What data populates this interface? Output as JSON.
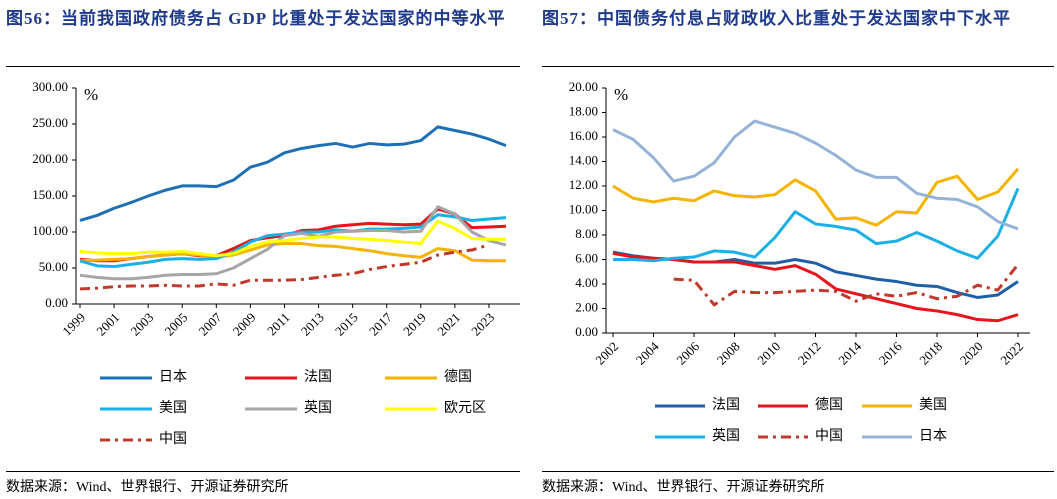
{
  "chart_data": [
    {
      "type": "line",
      "title": "图56：当前我国政府债务占 GDP 比重处于发达国家的中等水平",
      "source": "数据来源：Wind、世界银行、开源证券研究所",
      "y_label": "%",
      "x": [
        1999,
        2000,
        2001,
        2002,
        2003,
        2004,
        2005,
        2006,
        2007,
        2008,
        2009,
        2010,
        2011,
        2012,
        2013,
        2014,
        2015,
        2016,
        2017,
        2018,
        2019,
        2020,
        2021,
        2022,
        2023,
        2024
      ],
      "xlim": [
        1999,
        2024
      ],
      "xticks": [
        1999,
        2001,
        2003,
        2005,
        2007,
        2009,
        2011,
        2013,
        2015,
        2017,
        2019,
        2021,
        2023
      ],
      "ylim": [
        0,
        300
      ],
      "yticks": [
        {
          "value": 0,
          "label": "0.00"
        },
        {
          "value": 50,
          "label": "50.00"
        },
        {
          "value": 100,
          "label": "100.00"
        },
        {
          "value": 150,
          "label": "150.00"
        },
        {
          "value": 200,
          "label": "200.00"
        },
        {
          "value": 250,
          "label": "250.00"
        },
        {
          "value": 300,
          "label": "300.00"
        }
      ],
      "series": [
        {
          "name": "日本",
          "color": "#1f6fb4",
          "values": [
            116,
            123,
            133,
            141,
            150,
            158,
            164,
            164,
            163,
            172,
            190,
            197,
            210,
            216,
            220,
            223,
            218,
            223,
            221,
            222,
            227,
            246,
            241,
            236,
            229,
            220
          ]
        },
        {
          "name": "法国",
          "color": "#e8141c",
          "values": [
            62,
            60,
            60,
            63,
            66,
            68,
            70,
            67,
            67,
            77,
            88,
            92,
            95,
            102,
            103,
            108,
            110,
            112,
            111,
            110,
            111,
            132,
            125,
            106,
            107,
            108
          ]
        },
        {
          "name": "德国",
          "color": "#f5b400",
          "values": [
            60,
            61,
            62,
            63,
            66,
            68,
            70,
            68,
            65,
            68,
            75,
            82,
            84,
            84,
            81,
            80,
            77,
            74,
            70,
            67,
            65,
            77,
            74,
            61,
            60,
            60
          ]
        },
        {
          "name": "美国",
          "color": "#1ab0e6",
          "values": [
            60,
            53,
            52,
            55,
            58,
            62,
            63,
            62,
            63,
            72,
            86,
            95,
            97,
            100,
            100,
            103,
            101,
            104,
            104,
            105,
            107,
            124,
            121,
            116,
            118,
            120
          ]
        },
        {
          "name": "英国",
          "color": "#a6a6a6",
          "values": [
            40,
            37,
            35,
            35,
            37,
            40,
            41,
            41,
            42,
            50,
            63,
            76,
            95,
            98,
            94,
            100,
            101,
            102,
            102,
            100,
            101,
            135,
            125,
            100,
            88,
            82
          ]
        },
        {
          "name": "欧元区",
          "color": "#ffff00",
          "values": [
            73,
            71,
            70,
            70,
            72,
            72,
            73,
            70,
            67,
            70,
            80,
            86,
            88,
            91,
            93,
            93,
            91,
            90,
            88,
            86,
            84,
            115,
            105,
            91,
            90,
            90
          ]
        },
        {
          "name": "中国",
          "color": "#c0392b",
          "style": "dash-dot",
          "values": [
            21,
            22,
            24,
            25,
            25,
            26,
            25,
            25,
            28,
            26,
            33,
            33,
            33,
            34,
            37,
            40,
            42,
            48,
            52,
            55,
            58,
            68,
            72,
            75,
            82,
            null
          ]
        }
      ]
    },
    {
      "type": "line",
      "title": "图57：中国债务付息占财政收入比重处于发达国家中下水平",
      "source": "数据来源：Wind、世界银行、开源证券研究所",
      "y_label": "%",
      "x": [
        2002,
        2003,
        2004,
        2005,
        2006,
        2007,
        2008,
        2009,
        2010,
        2011,
        2012,
        2013,
        2014,
        2015,
        2016,
        2017,
        2018,
        2019,
        2020,
        2021,
        2022
      ],
      "xlim": [
        2002,
        2022
      ],
      "xticks": [
        2002,
        2004,
        2006,
        2008,
        2010,
        2012,
        2014,
        2016,
        2018,
        2020,
        2022
      ],
      "ylim": [
        0,
        20
      ],
      "yticks": [
        {
          "value": 0,
          "label": "0.00"
        },
        {
          "value": 2,
          "label": "2.00"
        },
        {
          "value": 4,
          "label": "4.00"
        },
        {
          "value": 6,
          "label": "6.00"
        },
        {
          "value": 8,
          "label": "8.00"
        },
        {
          "value": 10,
          "label": "10.00"
        },
        {
          "value": 12,
          "label": "12.00"
        },
        {
          "value": 14,
          "label": "14.00"
        },
        {
          "value": 16,
          "label": "16.00"
        },
        {
          "value": 18,
          "label": "18.00"
        },
        {
          "value": 20,
          "label": "20.00"
        }
      ],
      "series": [
        {
          "name": "法国",
          "color": "#1f5fa8",
          "values": [
            6.6,
            6.3,
            6.1,
            6.0,
            5.8,
            5.8,
            6.0,
            5.7,
            5.7,
            6.0,
            5.7,
            5.0,
            4.7,
            4.4,
            4.2,
            3.9,
            3.8,
            3.3,
            2.9,
            3.1,
            4.2
          ]
        },
        {
          "name": "德国",
          "color": "#e8141c",
          "values": [
            6.5,
            6.2,
            6.1,
            6.0,
            5.8,
            5.8,
            5.8,
            5.5,
            5.2,
            5.5,
            4.8,
            3.6,
            3.2,
            2.8,
            2.4,
            2.0,
            1.8,
            1.5,
            1.1,
            1.0,
            1.5
          ]
        },
        {
          "name": "美国",
          "color": "#f5b400",
          "values": [
            12.0,
            11.0,
            10.7,
            11.0,
            10.8,
            11.6,
            11.2,
            11.1,
            11.3,
            12.5,
            11.6,
            9.3,
            9.4,
            8.8,
            9.9,
            9.8,
            12.3,
            12.8,
            10.9,
            11.5,
            13.4
          ]
        },
        {
          "name": "英国",
          "color": "#1ab0e6",
          "values": [
            6.0,
            6.0,
            5.9,
            6.1,
            6.2,
            6.7,
            6.6,
            6.2,
            7.8,
            9.9,
            8.9,
            8.7,
            8.4,
            7.3,
            7.5,
            8.2,
            7.5,
            6.7,
            6.1,
            7.9,
            11.8
          ]
        },
        {
          "name": "中国",
          "color": "#c0392b",
          "style": "dash-dot",
          "values": [
            null,
            null,
            null,
            4.4,
            4.3,
            2.3,
            3.4,
            3.3,
            3.3,
            3.4,
            3.5,
            3.4,
            2.6,
            3.2,
            3.0,
            3.3,
            2.8,
            3.0,
            3.9,
            3.5,
            5.6
          ]
        },
        {
          "name": "日本",
          "color": "#95b3d7",
          "values": [
            16.6,
            15.8,
            14.3,
            12.4,
            12.8,
            13.9,
            16.0,
            17.3,
            16.8,
            16.3,
            15.5,
            14.5,
            13.3,
            12.7,
            12.7,
            11.4,
            11.0,
            10.9,
            10.3,
            9.1,
            8.5
          ]
        }
      ]
    }
  ]
}
